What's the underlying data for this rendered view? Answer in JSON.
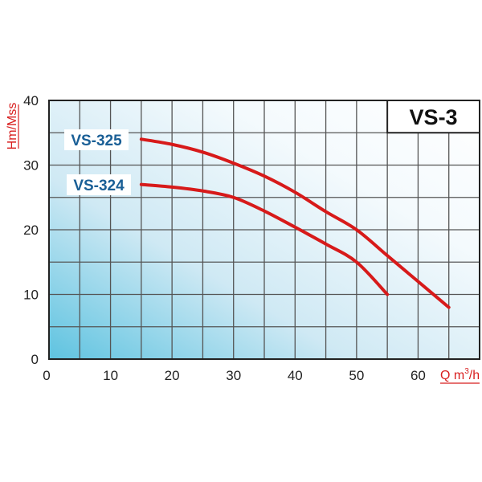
{
  "chart_data": {
    "type": "line",
    "title": "VS-3",
    "xlabel": "Q m³/h",
    "xlabel_parts": {
      "main": "Q m",
      "sup": "3",
      "tail": "/h"
    },
    "ylabel": "Hm/Mss",
    "xlim": [
      0,
      70
    ],
    "ylim": [
      0,
      40
    ],
    "x_ticks": [
      0,
      10,
      20,
      30,
      40,
      50,
      60
    ],
    "y_ticks": [
      0,
      10,
      20,
      30,
      40
    ],
    "grid": true,
    "grid_step": {
      "x": 5,
      "y": 5
    },
    "legend_position": "inline-left",
    "series": [
      {
        "name": "VS-325",
        "color": "#d71a1a",
        "x": [
          15,
          20,
          25,
          30,
          35,
          40,
          45,
          50,
          55,
          60,
          65
        ],
        "y": [
          34,
          33.2,
          32,
          30.3,
          28.3,
          25.8,
          22.8,
          20,
          16,
          12,
          8
        ]
      },
      {
        "name": "VS-324",
        "color": "#d71a1a",
        "x": [
          15,
          20,
          25,
          30,
          35,
          40,
          45,
          50,
          55
        ],
        "y": [
          27,
          26.6,
          26,
          25,
          22.9,
          20.4,
          17.8,
          15,
          10
        ]
      }
    ]
  },
  "colors": {
    "curve": "#d71a1a",
    "series_label": "#1a5f96",
    "axis_label": "#d81e1e",
    "gradient_start": "#5ec3e0",
    "gradient_end": "#ffffff",
    "grid": "#555555"
  }
}
